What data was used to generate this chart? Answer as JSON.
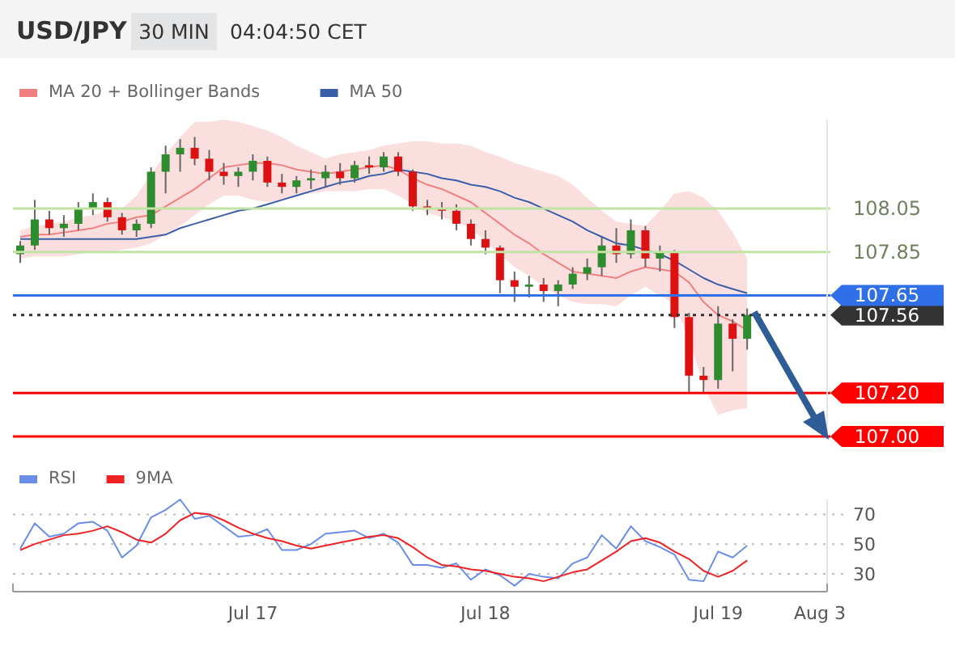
{
  "chart_data": [
    {
      "type": "candlestick",
      "title": "USD/JPY",
      "annotations": [
        "30 MIN",
        "04:04:50 CET"
      ],
      "legend": "top left",
      "ylim": [
        107.0,
        108.46
      ],
      "yticks": [
        {
          "value": 107.0,
          "label": "107.00"
        },
        {
          "value": 107.2,
          "label": "107.20"
        },
        107.56,
        107.65,
        107.85,
        108.05
      ],
      "categories": [
        null,
        null,
        null,
        null,
        null,
        null,
        null,
        null,
        null,
        null,
        null,
        null,
        null,
        null,
        null,
        null,
        null,
        null,
        null,
        null,
        null,
        null,
        null,
        null,
        null,
        null,
        null,
        null,
        null,
        null,
        null,
        null,
        null,
        null,
        null,
        null,
        null,
        null,
        null,
        null,
        null,
        null,
        null,
        null,
        null,
        null,
        null,
        null,
        null,
        null,
        null
      ],
      "ohlc": [
        [
          107.84,
          107.9,
          107.8,
          107.88
        ],
        [
          107.88,
          108.09,
          107.86,
          108.0
        ],
        [
          108.0,
          108.04,
          107.93,
          107.96
        ],
        [
          107.96,
          108.02,
          107.92,
          107.98
        ],
        [
          107.98,
          108.08,
          107.95,
          108.05
        ],
        [
          108.05,
          108.12,
          108.02,
          108.08
        ],
        [
          108.08,
          108.1,
          107.99,
          108.01
        ],
        [
          108.01,
          108.03,
          107.93,
          107.95
        ],
        [
          107.95,
          108.0,
          107.92,
          107.98
        ],
        [
          107.98,
          108.24,
          107.96,
          108.22
        ],
        [
          108.22,
          108.34,
          108.12,
          108.3
        ],
        [
          108.3,
          108.37,
          108.22,
          108.33
        ],
        [
          108.33,
          108.38,
          108.25,
          108.28
        ],
        [
          108.28,
          108.32,
          108.18,
          108.22
        ],
        [
          108.22,
          108.26,
          108.16,
          108.2
        ],
        [
          108.2,
          108.24,
          108.15,
          108.22
        ],
        [
          108.22,
          108.3,
          108.18,
          108.27
        ],
        [
          108.27,
          108.29,
          108.15,
          108.17
        ],
        [
          108.17,
          108.21,
          108.12,
          108.15
        ],
        [
          108.15,
          108.2,
          108.12,
          108.18
        ],
        [
          108.18,
          108.23,
          108.14,
          108.19
        ],
        [
          108.19,
          108.25,
          108.15,
          108.22
        ],
        [
          108.22,
          108.26,
          108.16,
          108.19
        ],
        [
          108.19,
          108.27,
          108.17,
          108.25
        ],
        [
          108.25,
          108.29,
          108.21,
          108.24
        ],
        [
          108.24,
          108.31,
          108.22,
          108.29
        ],
        [
          108.29,
          108.31,
          108.2,
          108.22
        ],
        [
          108.22,
          108.23,
          108.04,
          108.06
        ],
        [
          108.06,
          108.09,
          108.02,
          108.05
        ],
        [
          108.05,
          108.08,
          108.0,
          108.04
        ],
        [
          108.04,
          108.07,
          107.95,
          107.98
        ],
        [
          107.98,
          108.0,
          107.88,
          107.91
        ],
        [
          107.91,
          107.95,
          107.84,
          107.87
        ],
        [
          107.87,
          107.88,
          107.66,
          107.72
        ],
        [
          107.72,
          107.76,
          107.62,
          107.69
        ],
        [
          107.69,
          107.74,
          107.64,
          107.7
        ],
        [
          107.7,
          107.73,
          107.62,
          107.67
        ],
        [
          107.67,
          107.72,
          107.6,
          107.7
        ],
        [
          107.7,
          107.78,
          107.68,
          107.75
        ],
        [
          107.75,
          107.82,
          107.72,
          107.78
        ],
        [
          107.78,
          107.92,
          107.74,
          107.88
        ],
        [
          107.88,
          107.96,
          107.8,
          107.84
        ],
        [
          107.84,
          108.0,
          107.82,
          107.95
        ],
        [
          107.95,
          107.97,
          107.78,
          107.82
        ],
        [
          107.82,
          107.88,
          107.76,
          107.85
        ],
        [
          107.85,
          107.86,
          107.5,
          107.55
        ],
        [
          107.55,
          107.57,
          107.2,
          107.28
        ],
        [
          107.28,
          107.32,
          107.2,
          107.26
        ],
        [
          107.26,
          107.6,
          107.22,
          107.52
        ],
        [
          107.52,
          107.54,
          107.3,
          107.45
        ],
        [
          107.45,
          107.59,
          107.4,
          107.56
        ]
      ],
      "series": [
        {
          "type": "line",
          "name": "MA 20 + Bollinger Bands",
          "color": "#f08080",
          "values": [
            107.92,
            107.93,
            107.93,
            107.94,
            107.95,
            107.96,
            107.98,
            107.99,
            108.01,
            108.02,
            108.06,
            108.1,
            108.14,
            108.19,
            108.24,
            108.25,
            108.26,
            108.26,
            108.25,
            108.23,
            108.22,
            108.21,
            108.22,
            108.23,
            108.24,
            108.25,
            108.23,
            108.19,
            108.16,
            108.14,
            108.11,
            108.08,
            108.03,
            107.98,
            107.93,
            107.89,
            107.84,
            107.8,
            107.76,
            107.75,
            107.74,
            107.73,
            107.76,
            107.78,
            107.77,
            107.76,
            107.71,
            107.62,
            107.56,
            107.53,
            107.49
          ],
          "upper": [
            107.95,
            107.97,
            107.98,
            107.99,
            108.01,
            108.02,
            108.04,
            108.05,
            108.11,
            108.21,
            108.3,
            108.38,
            108.45,
            108.45,
            108.46,
            108.45,
            108.43,
            108.41,
            108.38,
            108.34,
            108.31,
            108.28,
            108.3,
            108.31,
            108.32,
            108.34,
            108.35,
            108.36,
            108.36,
            108.35,
            108.35,
            108.34,
            108.31,
            108.29,
            108.26,
            108.24,
            108.22,
            108.2,
            108.16,
            108.1,
            108.04,
            107.99,
            107.98,
            107.97,
            108.04,
            108.12,
            108.13,
            108.1,
            108.04,
            107.94,
            107.82
          ],
          "lower": [
            107.82,
            107.83,
            107.83,
            107.83,
            107.84,
            107.85,
            107.85,
            107.86,
            107.87,
            107.89,
            107.93,
            107.97,
            108.02,
            108.07,
            108.11,
            108.11,
            108.09,
            108.08,
            108.09,
            108.11,
            108.12,
            108.13,
            108.13,
            108.13,
            108.14,
            108.14,
            108.11,
            108.07,
            108.03,
            108.01,
            107.99,
            107.96,
            107.9,
            107.84,
            107.78,
            107.74,
            107.69,
            107.65,
            107.62,
            107.61,
            107.61,
            107.6,
            107.65,
            107.69,
            107.65,
            107.61,
            107.45,
            107.23,
            107.1,
            107.12,
            107.13
          ]
        },
        {
          "type": "line",
          "name": "MA 50",
          "color": "#3a5fa8",
          "values": [
            107.91,
            107.91,
            107.91,
            107.91,
            107.91,
            107.91,
            107.91,
            107.91,
            107.91,
            107.92,
            107.93,
            107.96,
            107.98,
            108.0,
            108.02,
            108.04,
            108.05,
            108.07,
            108.09,
            108.11,
            108.13,
            108.15,
            108.17,
            108.18,
            108.2,
            108.21,
            108.23,
            108.22,
            108.21,
            108.19,
            108.18,
            108.16,
            108.15,
            108.13,
            108.1,
            108.08,
            108.05,
            108.02,
            107.99,
            107.95,
            107.92,
            107.89,
            107.88,
            107.86,
            107.84,
            107.81,
            107.77,
            107.73,
            107.7,
            107.68,
            107.66
          ]
        }
      ],
      "ref_lines": [
        {
          "axis": "y",
          "value": 108.05,
          "color": "#c2e3a4",
          "line_style": "solid"
        },
        {
          "axis": "y",
          "value": 107.85,
          "color": "#c2e3a4",
          "line_style": "solid"
        },
        {
          "axis": "y",
          "value": 107.65,
          "color": "#2f6fe8",
          "line_style": "solid"
        },
        {
          "axis": "y",
          "value": 107.56,
          "color": "#333333",
          "line_style": "dotted"
        },
        {
          "axis": "y",
          "value": 107.2,
          "color": "#ff0000",
          "line_style": "solid"
        },
        {
          "axis": "y",
          "value": 107.0,
          "color": "#ff0000",
          "line_style": "solid"
        }
      ]
    },
    {
      "type": "line",
      "legend": "top left",
      "grid": "y",
      "ylim": [
        18,
        80
      ],
      "yticks": [
        30,
        50,
        70
      ],
      "categories": [
        null,
        null,
        null,
        null,
        null,
        null,
        null,
        null,
        null,
        null,
        null,
        null,
        null,
        null,
        null,
        null,
        "Jul 17",
        null,
        null,
        null,
        null,
        null,
        null,
        null,
        null,
        null,
        null,
        null,
        null,
        null,
        null,
        null,
        "Jul 18",
        null,
        null,
        null,
        null,
        null,
        null,
        null,
        null,
        null,
        null,
        null,
        null,
        null,
        null,
        null,
        "Jul 19",
        null,
        null,
        null,
        null,
        null,
        null,
        "Aug 3"
      ],
      "series": [
        {
          "name": "RSI",
          "color": "#6a8ee8",
          "values": [
            47,
            64,
            55,
            57,
            64,
            65,
            59,
            41,
            49,
            68,
            73,
            80,
            67,
            69,
            62,
            55,
            56,
            60,
            46,
            46,
            50,
            57,
            58,
            59,
            54,
            57,
            51,
            36,
            36,
            34,
            37,
            26,
            33,
            29,
            22,
            30,
            28,
            27,
            37,
            41,
            56,
            47,
            62,
            52,
            48,
            43,
            26,
            25,
            45,
            41,
            49,
            null,
            null,
            null,
            null,
            null
          ]
        },
        {
          "name": "9MA",
          "color": "#ee2222",
          "values": [
            46,
            50,
            53,
            56,
            57,
            59,
            62,
            58,
            53,
            51,
            57,
            66,
            71,
            70,
            66,
            61,
            57,
            54,
            52,
            49,
            47,
            49,
            51,
            53,
            55,
            56,
            54,
            48,
            41,
            36,
            35,
            33,
            32,
            30,
            28,
            27,
            25,
            28,
            31,
            33,
            39,
            45,
            52,
            54,
            51,
            45,
            40,
            32,
            28,
            32,
            39,
            null,
            null,
            null,
            null,
            null
          ]
        }
      ]
    }
  ]
}
